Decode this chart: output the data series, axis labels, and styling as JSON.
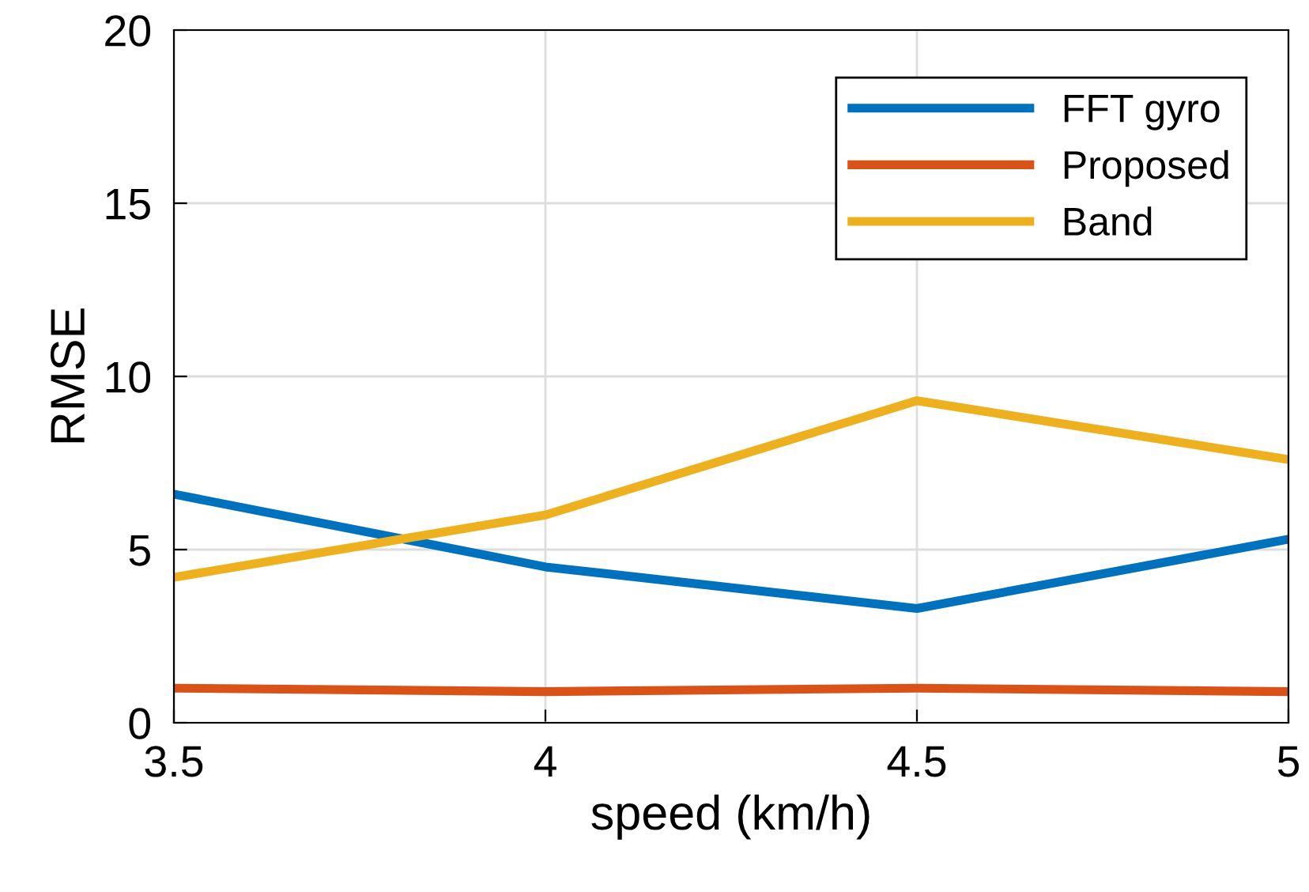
{
  "chart_data": {
    "type": "line",
    "xlabel": "speed (km/h)",
    "ylabel": "RMSE",
    "x": [
      3.5,
      4,
      4.5,
      5
    ],
    "series": [
      {
        "name": "FFT gyro",
        "color": "#0072bd",
        "values": [
          6.6,
          4.5,
          3.3,
          5.3
        ]
      },
      {
        "name": "Proposed",
        "color": "#d95319",
        "values": [
          1.0,
          0.9,
          1.0,
          0.9
        ]
      },
      {
        "name": "Band",
        "color": "#edb120",
        "values": [
          4.2,
          6.0,
          9.3,
          7.6
        ]
      }
    ],
    "xlim": [
      3.5,
      5
    ],
    "xticks": [
      3.5,
      4,
      4.5,
      5
    ],
    "ylim": [
      0,
      20
    ],
    "yticks": [
      0,
      5,
      10,
      15,
      20
    ],
    "grid": true,
    "legend": "top right",
    "marker": "none",
    "line_style": "solid"
  }
}
